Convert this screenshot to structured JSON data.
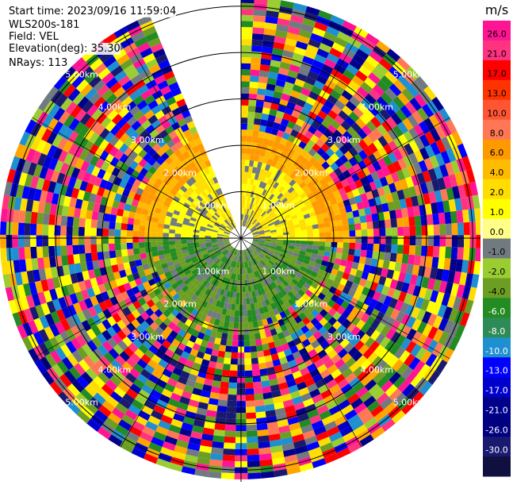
{
  "header": {
    "start_time": "Start time: 2023/09/16 11:59:04",
    "station": "WLS200s-181",
    "field": "Field: VEL",
    "elevation": "Elevation(deg): 35.30",
    "nrays": "NRays: 113"
  },
  "chart_data": {
    "type": "heatmap",
    "projection": "polar-ppi",
    "field": "VEL",
    "unit": "m/s",
    "rays": 113,
    "range_rings_km": [
      1.0,
      2.0,
      3.0,
      4.0,
      5.0
    ],
    "ring_labels": [
      "1.00km",
      "2.00km",
      "3.00km",
      "4.00km",
      "5.00km"
    ],
    "max_range_km": 5.2,
    "missing_sector_deg": [
      335,
      360
    ],
    "colorbar": {
      "unit": "m/s",
      "ticks": [
        "26.0",
        "21.0",
        "17.0",
        "13.0",
        "10.0",
        "8.0",
        "6.0",
        "4.0",
        "2.0",
        "1.0",
        "0.0",
        "-1.0",
        "-2.0",
        "-4.0",
        "-6.0",
        "-8.0",
        "-10.0",
        "-13.0",
        "-17.0",
        "-21.0",
        "-26.0",
        "-30.0"
      ],
      "colors": [
        "#ff1493",
        "#ff3380",
        "#ff0000",
        "#ff3300",
        "#ff5533",
        "#ff7755",
        "#ff9900",
        "#ffbb00",
        "#ffdd00",
        "#ffff00",
        "#ffff88",
        "#707a80",
        "#9acd32",
        "#6b9e23",
        "#228b22",
        "#2e8b57",
        "#1e8fd0",
        "#0000ff",
        "#0000cd",
        "#00008b",
        "#000080",
        "#191970",
        "#101040"
      ]
    }
  }
}
